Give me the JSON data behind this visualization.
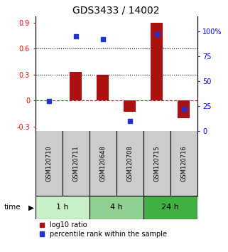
{
  "title": "GDS3433 / 14002",
  "samples": [
    "GSM120710",
    "GSM120711",
    "GSM120648",
    "GSM120708",
    "GSM120715",
    "GSM120716"
  ],
  "log10_ratio": [
    0.0,
    0.33,
    0.3,
    -0.13,
    0.9,
    -0.2
  ],
  "percentile_rank": [
    30,
    95,
    92,
    10,
    97,
    22
  ],
  "group_boundaries": [
    [
      0,
      2,
      "1 h",
      "#c8f0c8"
    ],
    [
      2,
      4,
      "4 h",
      "#90d090"
    ],
    [
      4,
      6,
      "24 h",
      "#40b040"
    ]
  ],
  "ylim_left": [
    -0.35,
    0.97
  ],
  "ylim_right": [
    0,
    114.7
  ],
  "yticks_left": [
    -0.3,
    0.0,
    0.3,
    0.6,
    0.9
  ],
  "yticks_right": [
    0,
    25,
    50,
    75,
    100
  ],
  "ytick_labels_left": [
    "-0.3",
    "0",
    "0.3",
    "0.6",
    "0.9"
  ],
  "ytick_labels_right": [
    "0",
    "25",
    "50",
    "75",
    "100%"
  ],
  "hlines": [
    0.3,
    0.6
  ],
  "bar_color": "#aa1111",
  "dot_color": "#2233cc",
  "zero_line_color": "#aa2222",
  "bar_width": 0.45,
  "dot_size": 22,
  "legend_labels": [
    "log10 ratio",
    "percentile rank within the sample"
  ],
  "bg_color_plot": "#ffffff",
  "bg_color_sample": "#cccccc",
  "title_fontsize": 10,
  "tick_fontsize": 7,
  "sample_fontsize": 6,
  "legend_fontsize": 7,
  "time_label_fontsize": 7.5,
  "time_group_fontsize": 8
}
